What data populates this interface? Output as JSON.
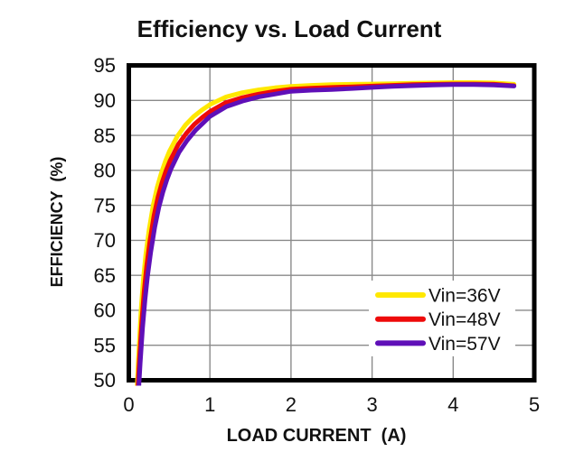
{
  "title": "Efficiency vs. Load Current",
  "chart_data": {
    "type": "line",
    "title": "Efficiency vs. Load Current",
    "xlabel": "LOAD CURRENT  (A)",
    "ylabel": "EFFICIENCY  (%)",
    "xlim": [
      0,
      5
    ],
    "ylim": [
      50,
      95
    ],
    "xticks": [
      0,
      1,
      2,
      3,
      4,
      5
    ],
    "yticks": [
      50,
      55,
      60,
      65,
      70,
      75,
      80,
      85,
      90,
      95
    ],
    "grid": true,
    "grid_color": "#8a8a8a",
    "frame_color": "#000000",
    "text_color": "#111111",
    "legend": {
      "position": "inside lower right",
      "background": "#ffffff",
      "entries": [
        "Vin=36V",
        "Vin=48V",
        "Vin=57V"
      ]
    },
    "series": [
      {
        "name": "Vin=36V",
        "color": "#ffe800",
        "x": [
          0.1,
          0.12,
          0.15,
          0.18,
          0.21,
          0.25,
          0.3,
          0.35,
          0.4,
          0.45,
          0.5,
          0.6,
          0.7,
          0.8,
          0.9,
          1.0,
          1.2,
          1.4,
          1.6,
          1.8,
          2.0,
          2.25,
          2.5,
          2.75,
          3.0,
          3.25,
          3.5,
          3.75,
          4.0,
          4.25,
          4.5,
          4.75
        ],
        "y": [
          48.5,
          53.5,
          60.0,
          64.5,
          68.0,
          71.5,
          75.0,
          77.6,
          79.6,
          81.3,
          82.7,
          84.9,
          86.5,
          87.7,
          88.6,
          89.4,
          90.5,
          91.1,
          91.5,
          91.8,
          92.0,
          92.15,
          92.25,
          92.3,
          92.35,
          92.4,
          92.45,
          92.5,
          92.55,
          92.55,
          92.5,
          92.3
        ]
      },
      {
        "name": "Vin=48V",
        "color": "#ee0a0a",
        "x": [
          0.11,
          0.13,
          0.16,
          0.19,
          0.22,
          0.26,
          0.31,
          0.36,
          0.41,
          0.46,
          0.51,
          0.61,
          0.71,
          0.81,
          0.91,
          1.0,
          1.2,
          1.4,
          1.6,
          1.8,
          2.0,
          2.25,
          2.5,
          2.75,
          3.0,
          3.25,
          3.5,
          3.75,
          4.0,
          4.25,
          4.5,
          4.75
        ],
        "y": [
          48.5,
          53.0,
          58.5,
          62.8,
          66.3,
          69.9,
          73.5,
          76.2,
          78.3,
          80.0,
          81.4,
          83.7,
          85.3,
          86.6,
          87.6,
          88.4,
          89.7,
          90.4,
          90.9,
          91.3,
          91.6,
          91.75,
          91.85,
          91.95,
          92.05,
          92.15,
          92.25,
          92.3,
          92.35,
          92.35,
          92.3,
          92.1
        ]
      },
      {
        "name": "Vin=57V",
        "color": "#5f0fb8",
        "x": [
          0.12,
          0.14,
          0.17,
          0.2,
          0.23,
          0.27,
          0.32,
          0.37,
          0.42,
          0.47,
          0.52,
          0.62,
          0.72,
          0.82,
          0.92,
          1.0,
          1.2,
          1.4,
          1.6,
          1.8,
          2.0,
          2.25,
          2.5,
          2.75,
          3.0,
          3.25,
          3.5,
          3.75,
          4.0,
          4.25,
          4.5,
          4.75
        ],
        "y": [
          48.5,
          52.5,
          57.5,
          61.5,
          64.8,
          68.3,
          71.9,
          74.7,
          76.9,
          78.7,
          80.2,
          82.6,
          84.3,
          85.7,
          86.8,
          87.7,
          89.1,
          89.9,
          90.5,
          90.9,
          91.3,
          91.45,
          91.55,
          91.7,
          91.85,
          92.0,
          92.1,
          92.2,
          92.25,
          92.25,
          92.2,
          92.05
        ]
      }
    ]
  }
}
